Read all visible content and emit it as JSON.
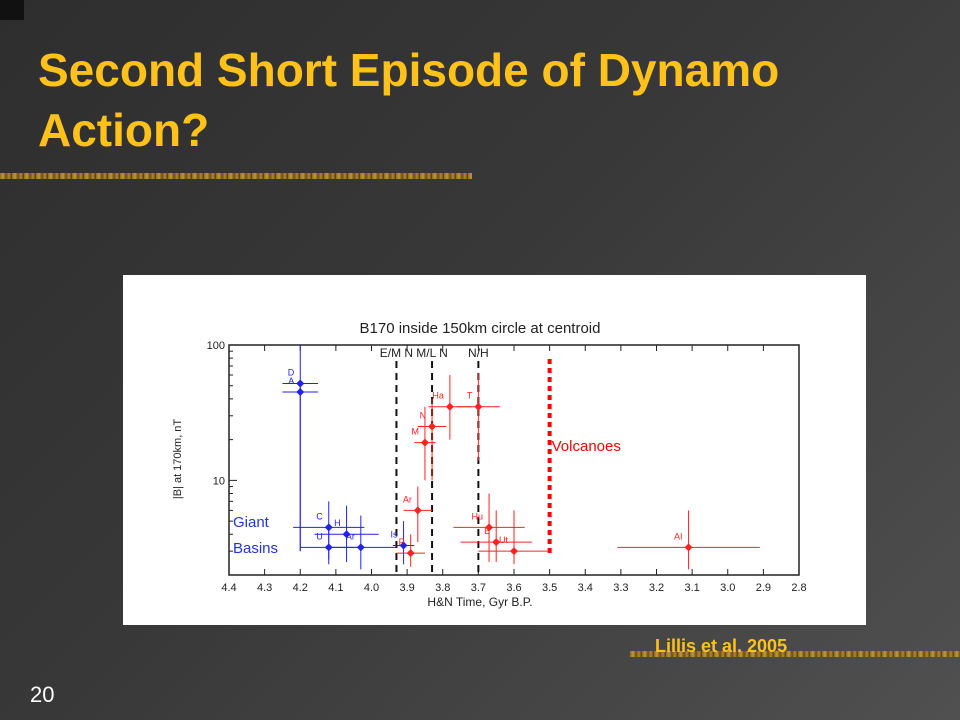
{
  "slide": {
    "title": "Second Short Episode of Dynamo Action?",
    "citation": "Lillis et al. 2005",
    "slide_number": "20",
    "colors": {
      "title": "#ffc21a",
      "background": "#3a3a3a"
    }
  },
  "chart_data": {
    "type": "scatter",
    "title": "B170 inside 150km circle at centroid",
    "xlabel": "H&N Time, Gyr B.P.",
    "ylabel": "|B| at 170km, nT",
    "xlim": [
      4.4,
      2.8
    ],
    "x_reversed": true,
    "ylim": [
      2,
      100
    ],
    "y_scale": "log",
    "xticks": [
      4.4,
      4.3,
      4.2,
      4.1,
      4.0,
      3.9,
      3.8,
      3.7,
      3.6,
      3.5,
      3.4,
      3.3,
      3.2,
      3.1,
      3.0,
      2.9,
      2.8
    ],
    "xtick_labels": [
      "4.4",
      "4.3",
      "4.2",
      "4.1",
      "4.0",
      "3.9",
      "3.8",
      "3.7",
      "3.6",
      "3.5",
      "3.4",
      "3.3",
      "3.2",
      "3.1",
      "3.0",
      "2.9",
      "2.8"
    ],
    "yticks": [
      10,
      100
    ],
    "ytick_labels": [
      "10",
      "100"
    ],
    "epoch_boundaries": [
      {
        "label": "E/M N",
        "x": 3.93
      },
      {
        "label": "M/L N",
        "x": 3.83
      },
      {
        "label": "N/H",
        "x": 3.7
      }
    ],
    "volcanoes_marker": {
      "x": 3.5,
      "label": "Volcanoes",
      "color": "#ff0000"
    },
    "group_labels": [
      {
        "label": "Giant",
        "color": "#2233dd"
      },
      {
        "label": "Basins",
        "color": "#2233dd"
      }
    ],
    "series": [
      {
        "color": "#2222ee",
        "points": [
          {
            "name": "D",
            "x": 4.2,
            "y": 52,
            "xerr": 0.05,
            "ylo": 3,
            "yhi": 100
          },
          {
            "name": "A",
            "x": 4.2,
            "y": 45,
            "xerr": 0.05,
            "ylo": 3,
            "yhi": 55
          },
          {
            "name": "C",
            "x": 4.12,
            "y": 4.5,
            "xerr": 0.1,
            "ylo": 2.6,
            "yhi": 7
          },
          {
            "name": "H",
            "x": 4.07,
            "y": 4.0,
            "xerr": 0.09,
            "ylo": 2.5,
            "yhi": 6.5
          },
          {
            "name": "Ar",
            "x": 4.03,
            "y": 3.2,
            "xerr": 0.1,
            "ylo": 2.2,
            "yhi": 5.5
          },
          {
            "name": "U",
            "x": 4.12,
            "y": 3.2,
            "xerr": 0.08,
            "ylo": 2.4,
            "yhi": 4.5
          },
          {
            "name": "Is",
            "x": 3.91,
            "y": 3.3,
            "xerr": 0.03,
            "ylo": 2.4,
            "yhi": 5
          }
        ]
      },
      {
        "color": "#ff2222",
        "points": [
          {
            "name": "Ha",
            "x": 3.78,
            "y": 35,
            "xerr": 0.06,
            "ylo": 20,
            "yhi": 60
          },
          {
            "name": "T",
            "x": 3.7,
            "y": 35,
            "xerr": 0.06,
            "ylo": 14,
            "yhi": 62
          },
          {
            "name": "N",
            "x": 3.83,
            "y": 25,
            "xerr": 0.04,
            "ylo": 10,
            "yhi": 40
          },
          {
            "name": "M",
            "x": 3.85,
            "y": 19,
            "xerr": 0.03,
            "ylo": 10,
            "yhi": 35
          },
          {
            "name": "Ar",
            "x": 3.87,
            "y": 6.0,
            "xerr": 0.04,
            "ylo": 3.5,
            "yhi": 9
          },
          {
            "name": "P",
            "x": 3.89,
            "y": 2.9,
            "xerr": 0.04,
            "ylo": 2.3,
            "yhi": 4
          },
          {
            "name": "Hu",
            "x": 3.67,
            "y": 4.5,
            "xerr": 0.1,
            "ylo": 2.5,
            "yhi": 8
          },
          {
            "name": "E",
            "x": 3.65,
            "y": 3.5,
            "xerr": 0.1,
            "ylo": 2.5,
            "yhi": 6
          },
          {
            "name": "Ut",
            "x": 3.6,
            "y": 3.0,
            "xerr": 0.1,
            "ylo": 2.4,
            "yhi": 6
          },
          {
            "name": "AI",
            "x": 3.11,
            "y": 3.2,
            "xerr": 0.2,
            "ylo": 2.2,
            "yhi": 6
          }
        ]
      }
    ]
  }
}
